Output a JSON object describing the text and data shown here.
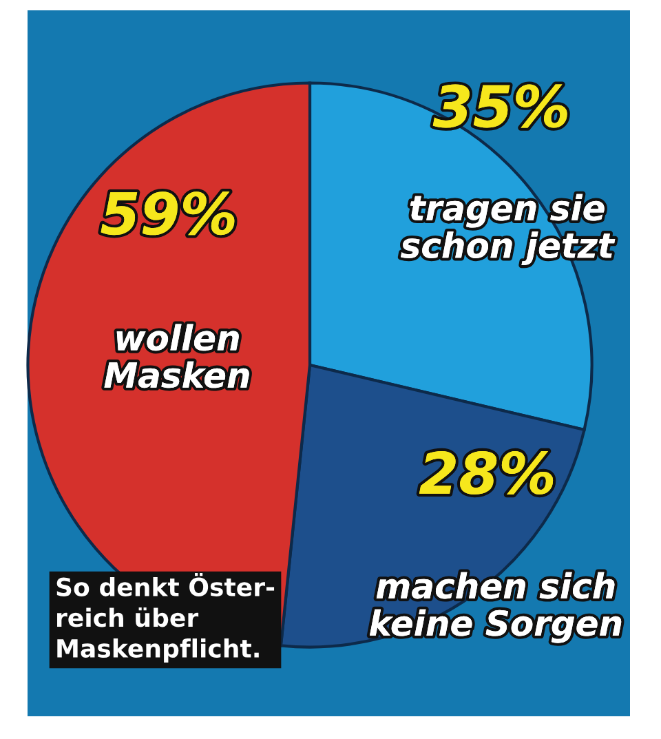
{
  "chart_data": {
    "type": "pie",
    "title": "So denkt Öster-\nreich über\nMaskenpflicht.",
    "categories": [
      "tragen sie\nschon jetzt",
      "machen sich\nkeine Sorgen",
      "wollen\nMasken"
    ],
    "values": [
      35,
      28,
      59
    ],
    "value_labels": [
      "35%",
      "28%",
      "59%"
    ],
    "colors": [
      "#21a0dc",
      "#1d4f8c",
      "#d5312c"
    ]
  }
}
